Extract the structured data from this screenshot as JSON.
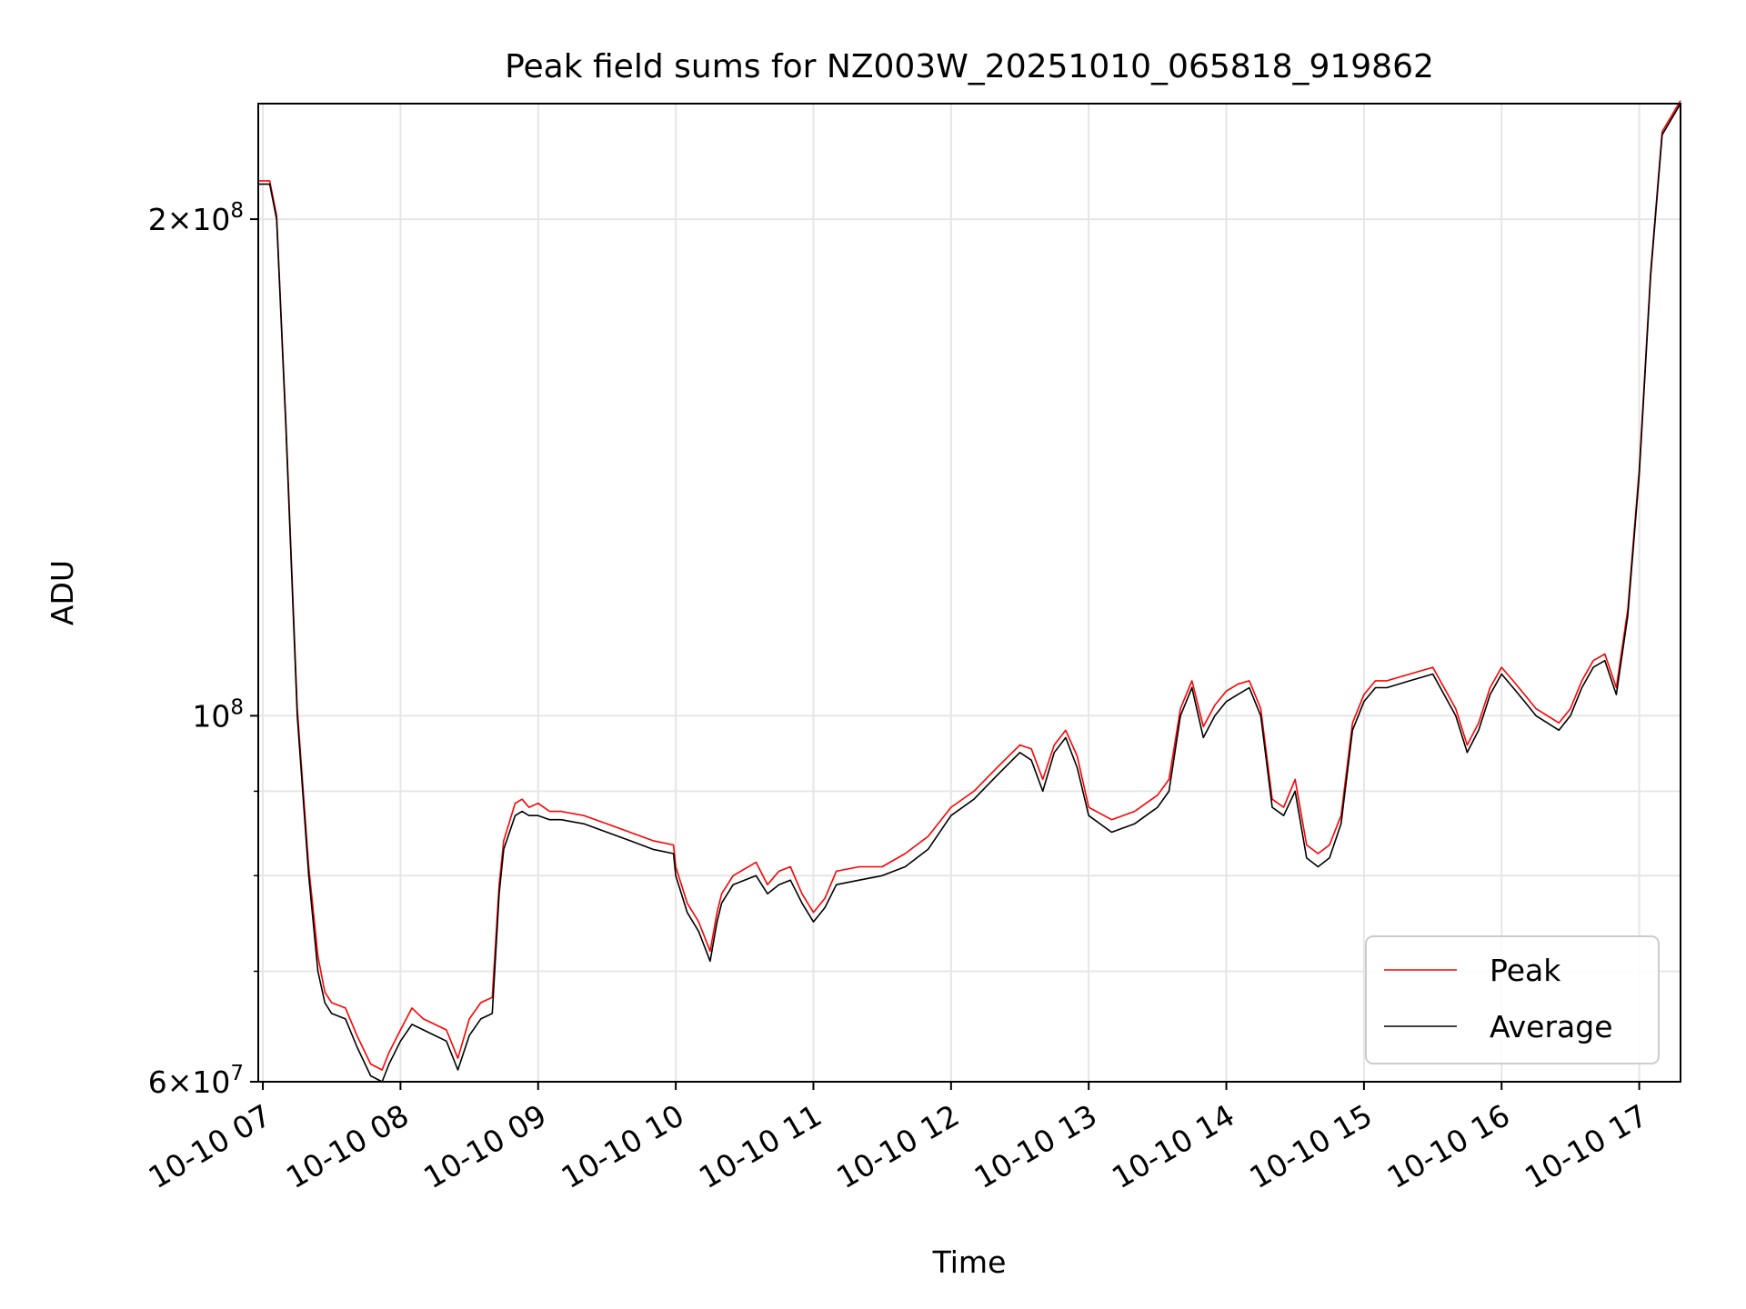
{
  "chart_data": {
    "type": "line",
    "title": "Peak field sums for NZ003W_20251010_065818_919862",
    "xlabel": "Time",
    "ylabel": "ADU",
    "yscale": "log",
    "grid": true,
    "legend_position": "lower-right",
    "xlim": [
      "2025-10-10 06:58",
      "2025-10-10 17:18"
    ],
    "ylim": [
      60000000,
      235000000
    ],
    "x_ticks": [
      {
        "value": "2025-10-10 07:00",
        "label": "10-10 07"
      },
      {
        "value": "2025-10-10 08:00",
        "label": "10-10 08"
      },
      {
        "value": "2025-10-10 09:00",
        "label": "10-10 09"
      },
      {
        "value": "2025-10-10 10:00",
        "label": "10-10 10"
      },
      {
        "value": "2025-10-10 11:00",
        "label": "10-10 11"
      },
      {
        "value": "2025-10-10 12:00",
        "label": "10-10 12"
      },
      {
        "value": "2025-10-10 13:00",
        "label": "10-10 13"
      },
      {
        "value": "2025-10-10 14:00",
        "label": "10-10 14"
      },
      {
        "value": "2025-10-10 15:00",
        "label": "10-10 15"
      },
      {
        "value": "2025-10-10 16:00",
        "label": "10-10 16"
      },
      {
        "value": "2025-10-10 17:00",
        "label": "10-10 17"
      }
    ],
    "y_major_ticks": [
      {
        "value": 60000000,
        "base": "6",
        "exp": "7"
      },
      {
        "value": 100000000,
        "base": "",
        "exp": "8"
      },
      {
        "value": 200000000,
        "base": "2",
        "exp": "8"
      }
    ],
    "y_minor_gridlines": [
      70000000,
      80000000,
      90000000
    ],
    "series": [
      {
        "name": "Average",
        "color": "#000000",
        "x": [
          "2025-10-10 06:58",
          "2025-10-10 07:03",
          "2025-10-10 07:06",
          "2025-10-10 07:10",
          "2025-10-10 07:15",
          "2025-10-10 07:20",
          "2025-10-10 07:24",
          "2025-10-10 07:27",
          "2025-10-10 07:30",
          "2025-10-10 07:36",
          "2025-10-10 07:41",
          "2025-10-10 07:47",
          "2025-10-10 07:52",
          "2025-10-10 07:55",
          "2025-10-10 08:00",
          "2025-10-10 08:05",
          "2025-10-10 08:10",
          "2025-10-10 08:15",
          "2025-10-10 08:20",
          "2025-10-10 08:25",
          "2025-10-10 08:30",
          "2025-10-10 08:35",
          "2025-10-10 08:40",
          "2025-10-10 08:43",
          "2025-10-10 08:45",
          "2025-10-10 08:50",
          "2025-10-10 08:53",
          "2025-10-10 08:56",
          "2025-10-10 09:00",
          "2025-10-10 09:05",
          "2025-10-10 09:10",
          "2025-10-10 09:20",
          "2025-10-10 09:30",
          "2025-10-10 09:40",
          "2025-10-10 09:50",
          "2025-10-10 09:59",
          "2025-10-10 10:00",
          "2025-10-10 10:05",
          "2025-10-10 10:10",
          "2025-10-10 10:15",
          "2025-10-10 10:18",
          "2025-10-10 10:20",
          "2025-10-10 10:25",
          "2025-10-10 10:35",
          "2025-10-10 10:40",
          "2025-10-10 10:45",
          "2025-10-10 10:50",
          "2025-10-10 10:55",
          "2025-10-10 11:00",
          "2025-10-10 11:05",
          "2025-10-10 11:10",
          "2025-10-10 11:20",
          "2025-10-10 11:30",
          "2025-10-10 11:40",
          "2025-10-10 11:50",
          "2025-10-10 12:00",
          "2025-10-10 12:10",
          "2025-10-10 12:20",
          "2025-10-10 12:30",
          "2025-10-10 12:35",
          "2025-10-10 12:40",
          "2025-10-10 12:45",
          "2025-10-10 12:50",
          "2025-10-10 12:55",
          "2025-10-10 13:00",
          "2025-10-10 13:10",
          "2025-10-10 13:20",
          "2025-10-10 13:25",
          "2025-10-10 13:30",
          "2025-10-10 13:35",
          "2025-10-10 13:40",
          "2025-10-10 13:45",
          "2025-10-10 13:50",
          "2025-10-10 13:55",
          "2025-10-10 14:00",
          "2025-10-10 14:05",
          "2025-10-10 14:10",
          "2025-10-10 14:15",
          "2025-10-10 14:20",
          "2025-10-10 14:25",
          "2025-10-10 14:30",
          "2025-10-10 14:35",
          "2025-10-10 14:40",
          "2025-10-10 14:45",
          "2025-10-10 14:50",
          "2025-10-10 14:55",
          "2025-10-10 15:00",
          "2025-10-10 15:05",
          "2025-10-10 15:10",
          "2025-10-10 15:20",
          "2025-10-10 15:30",
          "2025-10-10 15:40",
          "2025-10-10 15:45",
          "2025-10-10 15:50",
          "2025-10-10 15:55",
          "2025-10-10 16:00",
          "2025-10-10 16:05",
          "2025-10-10 16:10",
          "2025-10-10 16:15",
          "2025-10-10 16:20",
          "2025-10-10 16:25",
          "2025-10-10 16:30",
          "2025-10-10 16:35",
          "2025-10-10 16:40",
          "2025-10-10 16:45",
          "2025-10-10 16:50",
          "2025-10-10 16:55",
          "2025-10-10 17:00",
          "2025-10-10 17:05",
          "2025-10-10 17:10",
          "2025-10-10 17:18"
        ],
        "values": [
          210000000,
          210000000,
          200000000,
          150000000,
          100000000,
          80000000,
          70000000,
          67000000,
          66000000,
          65500000,
          63000000,
          60500000,
          60000000,
          61500000,
          63500000,
          65000000,
          64500000,
          64000000,
          63500000,
          61000000,
          64000000,
          65500000,
          66000000,
          78000000,
          83000000,
          87000000,
          87500000,
          87000000,
          87000000,
          86500000,
          86500000,
          86000000,
          85000000,
          84000000,
          83000000,
          82500000,
          80000000,
          76000000,
          74000000,
          71000000,
          75000000,
          77000000,
          79000000,
          80000000,
          78000000,
          79000000,
          79500000,
          77000000,
          75000000,
          76500000,
          79000000,
          79500000,
          80000000,
          81000000,
          83000000,
          87000000,
          89000000,
          92000000,
          95000000,
          94000000,
          90000000,
          95000000,
          97000000,
          93000000,
          87000000,
          85000000,
          86000000,
          87000000,
          88000000,
          90000000,
          100000000,
          104000000,
          97000000,
          100000000,
          102000000,
          103000000,
          104000000,
          100000000,
          88000000,
          87000000,
          90000000,
          82000000,
          81000000,
          82000000,
          86000000,
          98000000,
          102000000,
          104000000,
          104000000,
          105000000,
          106000000,
          100000000,
          95000000,
          98000000,
          103000000,
          106000000,
          104000000,
          102000000,
          100000000,
          99000000,
          98000000,
          100000000,
          104000000,
          107000000,
          108000000,
          103000000,
          115000000,
          140000000,
          185000000,
          225000000,
          235000000
        ]
      },
      {
        "name": "Peak",
        "color": "#ff0000",
        "x": [
          "2025-10-10 06:58",
          "2025-10-10 07:03",
          "2025-10-10 07:06",
          "2025-10-10 07:10",
          "2025-10-10 07:15",
          "2025-10-10 07:20",
          "2025-10-10 07:24",
          "2025-10-10 07:27",
          "2025-10-10 07:30",
          "2025-10-10 07:36",
          "2025-10-10 07:41",
          "2025-10-10 07:47",
          "2025-10-10 07:52",
          "2025-10-10 07:55",
          "2025-10-10 08:00",
          "2025-10-10 08:05",
          "2025-10-10 08:10",
          "2025-10-10 08:15",
          "2025-10-10 08:20",
          "2025-10-10 08:25",
          "2025-10-10 08:30",
          "2025-10-10 08:35",
          "2025-10-10 08:40",
          "2025-10-10 08:43",
          "2025-10-10 08:45",
          "2025-10-10 08:50",
          "2025-10-10 08:53",
          "2025-10-10 08:56",
          "2025-10-10 09:00",
          "2025-10-10 09:05",
          "2025-10-10 09:10",
          "2025-10-10 09:20",
          "2025-10-10 09:30",
          "2025-10-10 09:40",
          "2025-10-10 09:50",
          "2025-10-10 09:59",
          "2025-10-10 10:00",
          "2025-10-10 10:05",
          "2025-10-10 10:10",
          "2025-10-10 10:15",
          "2025-10-10 10:18",
          "2025-10-10 10:20",
          "2025-10-10 10:25",
          "2025-10-10 10:35",
          "2025-10-10 10:40",
          "2025-10-10 10:45",
          "2025-10-10 10:50",
          "2025-10-10 10:55",
          "2025-10-10 11:00",
          "2025-10-10 11:05",
          "2025-10-10 11:10",
          "2025-10-10 11:20",
          "2025-10-10 11:30",
          "2025-10-10 11:40",
          "2025-10-10 11:50",
          "2025-10-10 12:00",
          "2025-10-10 12:10",
          "2025-10-10 12:20",
          "2025-10-10 12:30",
          "2025-10-10 12:35",
          "2025-10-10 12:40",
          "2025-10-10 12:45",
          "2025-10-10 12:50",
          "2025-10-10 12:55",
          "2025-10-10 13:00",
          "2025-10-10 13:10",
          "2025-10-10 13:20",
          "2025-10-10 13:25",
          "2025-10-10 13:30",
          "2025-10-10 13:35",
          "2025-10-10 13:40",
          "2025-10-10 13:45",
          "2025-10-10 13:50",
          "2025-10-10 13:55",
          "2025-10-10 14:00",
          "2025-10-10 14:05",
          "2025-10-10 14:10",
          "2025-10-10 14:15",
          "2025-10-10 14:20",
          "2025-10-10 14:25",
          "2025-10-10 14:30",
          "2025-10-10 14:35",
          "2025-10-10 14:40",
          "2025-10-10 14:45",
          "2025-10-10 14:50",
          "2025-10-10 14:55",
          "2025-10-10 15:00",
          "2025-10-10 15:05",
          "2025-10-10 15:10",
          "2025-10-10 15:20",
          "2025-10-10 15:30",
          "2025-10-10 15:40",
          "2025-10-10 15:45",
          "2025-10-10 15:50",
          "2025-10-10 15:55",
          "2025-10-10 16:00",
          "2025-10-10 16:05",
          "2025-10-10 16:10",
          "2025-10-10 16:15",
          "2025-10-10 16:20",
          "2025-10-10 16:25",
          "2025-10-10 16:30",
          "2025-10-10 16:35",
          "2025-10-10 16:40",
          "2025-10-10 16:45",
          "2025-10-10 16:50",
          "2025-10-10 16:55",
          "2025-10-10 17:00",
          "2025-10-10 17:05",
          "2025-10-10 17:10",
          "2025-10-10 17:18"
        ],
        "values": [
          211000000,
          211000000,
          201000000,
          151000000,
          101000000,
          81000000,
          71500000,
          68000000,
          67000000,
          66500000,
          64000000,
          61500000,
          61000000,
          62500000,
          64500000,
          66500000,
          65500000,
          65000000,
          64500000,
          62000000,
          65500000,
          67000000,
          67500000,
          79000000,
          84000000,
          88500000,
          89000000,
          88000000,
          88500000,
          87500000,
          87500000,
          87000000,
          86000000,
          85000000,
          84000000,
          83500000,
          81000000,
          77000000,
          75000000,
          72000000,
          76000000,
          78000000,
          80000000,
          81500000,
          79000000,
          80500000,
          81000000,
          78000000,
          76000000,
          77500000,
          80500000,
          81000000,
          81000000,
          82500000,
          84500000,
          88000000,
          90000000,
          93000000,
          96000000,
          95500000,
          91500000,
          96000000,
          98000000,
          94500000,
          88000000,
          86500000,
          87500000,
          88500000,
          89500000,
          91500000,
          101000000,
          105000000,
          98500000,
          101500000,
          103500000,
          104500000,
          105000000,
          101000000,
          89000000,
          88000000,
          91500000,
          83500000,
          82500000,
          83500000,
          87000000,
          99000000,
          103000000,
          105000000,
          105000000,
          106000000,
          107000000,
          101000000,
          96000000,
          99000000,
          104000000,
          107000000,
          105000000,
          103000000,
          101000000,
          100000000,
          99000000,
          101000000,
          105000000,
          108000000,
          109000000,
          104000000,
          116000000,
          141000000,
          186000000,
          226000000,
          236000000
        ]
      }
    ],
    "legend": [
      {
        "label": "Peak",
        "color": "#ff0000"
      },
      {
        "label": "Average",
        "color": "#000000"
      }
    ]
  }
}
